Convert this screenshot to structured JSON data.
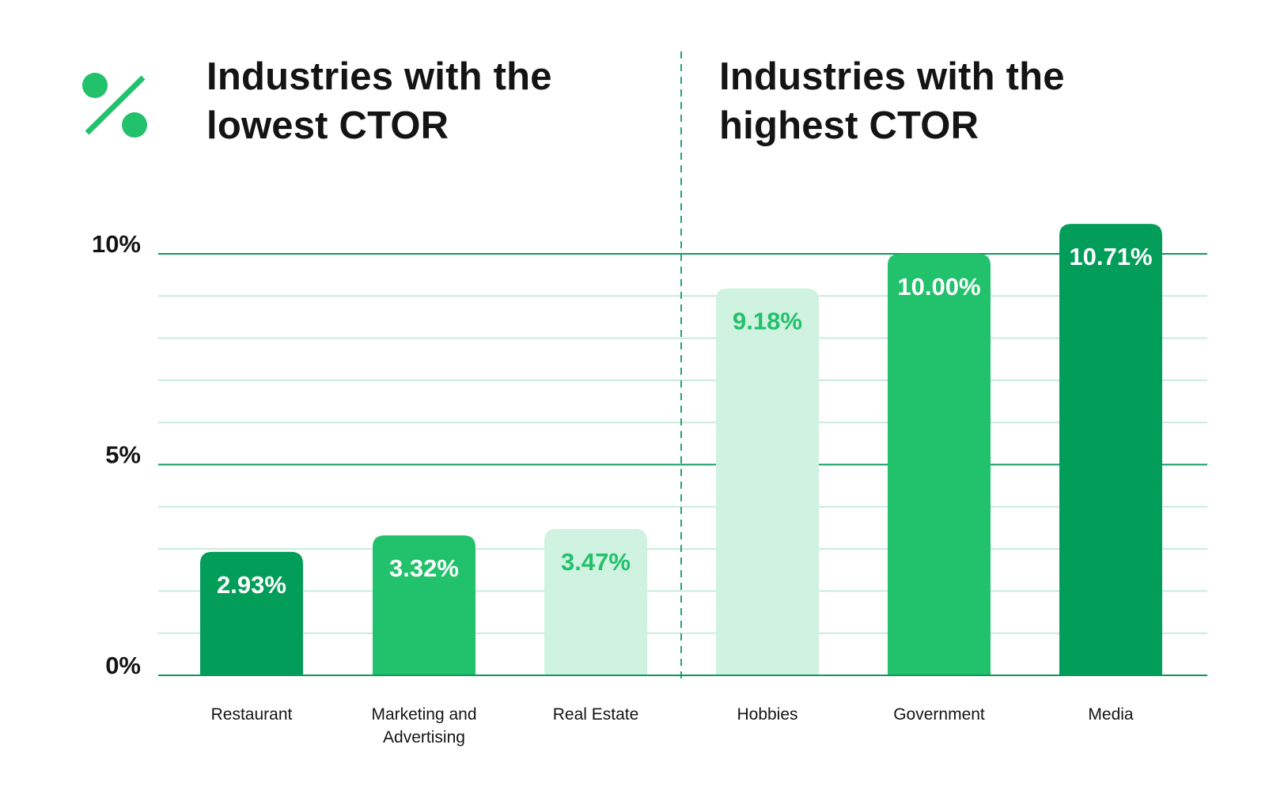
{
  "panels": {
    "left_title": "Industries with the lowest CTOR",
    "right_title": "Industries with the highest CTOR"
  },
  "icon": "percent-icon",
  "colors": {
    "dark_green": "#039d5a",
    "green": "#22c16b",
    "light_green": "#cff2e1",
    "major_grid": "#0b9a5d",
    "minor_grid": "#c9ecdb"
  },
  "chart_data": {
    "type": "bar",
    "categories": [
      "Restaurant",
      "Marketing and Advertising",
      "Real Estate",
      "Hobbies",
      "Government",
      "Media"
    ],
    "values": [
      2.93,
      3.32,
      3.47,
      9.18,
      10.0,
      10.71
    ],
    "data_labels": [
      "2.93%",
      "3.32%",
      "3.47%",
      "9.18%",
      "10.00%",
      "10.71%"
    ],
    "bar_colors": [
      "dark_green",
      "green",
      "light_green",
      "light_green",
      "green",
      "dark_green"
    ],
    "label_colors": [
      "#ffffff",
      "#ffffff",
      "#22c16b",
      "#22c16b",
      "#ffffff",
      "#ffffff"
    ],
    "groups": [
      {
        "title": "Industries with the lowest CTOR",
        "categories": [
          "Restaurant",
          "Marketing and Advertising",
          "Real Estate"
        ]
      },
      {
        "title": "Industries with the highest CTOR",
        "categories": [
          "Hobbies",
          "Government",
          "Media"
        ]
      }
    ],
    "y_ticks": [
      0,
      5,
      10
    ],
    "y_tick_labels": [
      "0%",
      "5%",
      "10%"
    ],
    "ylim": [
      0,
      10
    ],
    "minor_grid_step": 1,
    "grid": true,
    "xlabel": "",
    "ylabel": ""
  }
}
